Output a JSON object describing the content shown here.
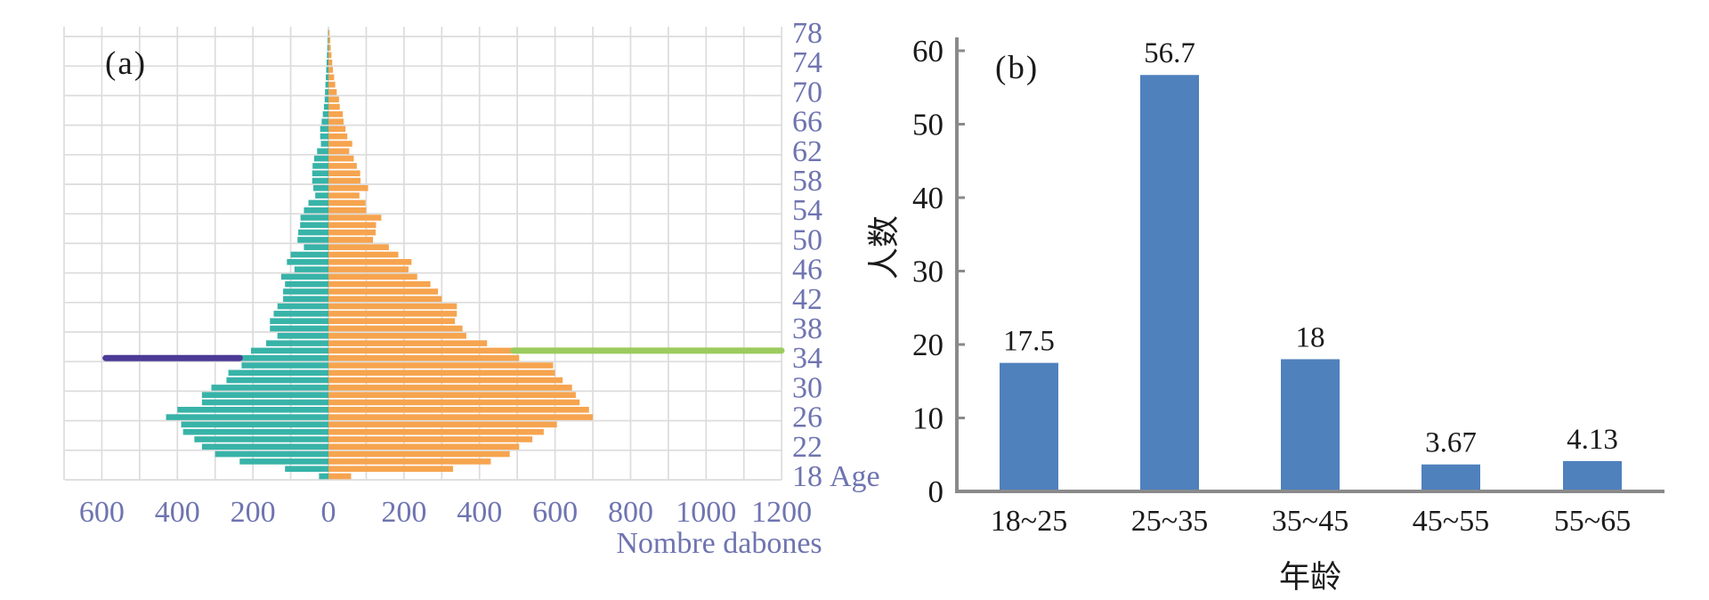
{
  "figure": {
    "panel_a_label": "(a)",
    "panel_b_label": "(b)"
  },
  "colors": {
    "teal": "#38b3a8",
    "orange": "#f6a44f",
    "purple_line": "#4c3a97",
    "green_line": "#9bcb5e",
    "bar_blue": "#4f81bd",
    "axis_text_a": "#6f74b0",
    "grid": "#dcdcdc",
    "axis_gray": "#8a8a8a",
    "text_black": "#1a1a1a"
  },
  "chart_data": [
    {
      "id": "population_pyramid",
      "type": "bar",
      "orientation": "horizontal-pyramid",
      "panel": "(a)",
      "xlabel": "Nombre dabones",
      "ylabel": "Age",
      "grid": true,
      "x_tick_values": [
        -600,
        -400,
        -200,
        0,
        200,
        400,
        600,
        800,
        1000,
        1200
      ],
      "x_tick_labels": [
        "600",
        "400",
        "200",
        "0",
        "200",
        "400",
        "600",
        "800",
        "1000",
        "1200"
      ],
      "y_ticks": [
        18,
        22,
        26,
        30,
        34,
        38,
        42,
        46,
        50,
        54,
        58,
        62,
        66,
        70,
        74,
        78
      ],
      "ages": [
        18,
        19,
        20,
        21,
        22,
        23,
        24,
        25,
        26,
        27,
        28,
        29,
        30,
        31,
        32,
        33,
        34,
        35,
        36,
        37,
        38,
        39,
        40,
        41,
        42,
        43,
        44,
        45,
        46,
        47,
        48,
        49,
        50,
        51,
        52,
        53,
        54,
        55,
        56,
        57,
        58,
        59,
        60,
        61,
        62,
        63,
        64,
        65,
        66,
        67,
        68,
        69,
        70,
        71,
        72,
        73,
        74,
        75,
        76,
        77,
        78
      ],
      "series": [
        {
          "name": "left",
          "color": "#38b3a8",
          "values": [
            25,
            115,
            235,
            300,
            335,
            355,
            385,
            390,
            430,
            400,
            335,
            335,
            310,
            270,
            265,
            230,
            235,
            205,
            165,
            135,
            155,
            155,
            145,
            135,
            120,
            120,
            115,
            125,
            90,
            110,
            100,
            65,
            82,
            80,
            75,
            74,
            65,
            53,
            35,
            40,
            43,
            43,
            42,
            38,
            30,
            20,
            22,
            22,
            18,
            15,
            12,
            10,
            9,
            8,
            7,
            6,
            5,
            4,
            3,
            2,
            1
          ]
        },
        {
          "name": "right",
          "color": "#f6a44f",
          "values": [
            60,
            330,
            430,
            480,
            505,
            540,
            570,
            605,
            700,
            690,
            665,
            655,
            645,
            620,
            600,
            595,
            505,
            490,
            420,
            365,
            355,
            335,
            340,
            340,
            300,
            290,
            270,
            235,
            212,
            220,
            185,
            160,
            118,
            125,
            126,
            140,
            100,
            98,
            82,
            105,
            85,
            84,
            75,
            67,
            55,
            63,
            50,
            45,
            40,
            38,
            30,
            28,
            22,
            18,
            15,
            12,
            10,
            8,
            6,
            5,
            3
          ]
        }
      ],
      "reference_lines": [
        {
          "side": "left",
          "age": 34,
          "from": 235,
          "to": 590,
          "color": "#4c3a97"
        },
        {
          "side": "right",
          "age": 35,
          "from": 490,
          "to": 1200,
          "color": "#9bcb5e"
        }
      ]
    },
    {
      "id": "age_group_counts",
      "type": "bar",
      "panel": "(b)",
      "categories": [
        "18~25",
        "25~35",
        "35~45",
        "45~55",
        "55~65"
      ],
      "values": [
        17.5,
        56.7,
        18,
        3.67,
        4.13
      ],
      "value_labels": [
        "17.5",
        "56.7",
        "18",
        "3.67",
        "4.13"
      ],
      "xlabel": "年龄",
      "ylabel": "人数",
      "ylim": [
        0,
        60
      ],
      "y_ticks": [
        0,
        10,
        20,
        30,
        40,
        50,
        60
      ],
      "grid": false,
      "legend": "none"
    }
  ]
}
